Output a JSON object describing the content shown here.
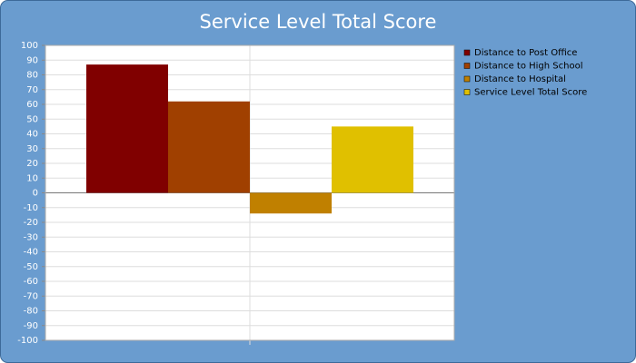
{
  "chart_data": {
    "type": "bar",
    "title": "Service Level Total Score",
    "categories": [
      null
    ],
    "series": [
      {
        "name": "Distance to Post Office",
        "color": "#800000",
        "values": [
          87
        ]
      },
      {
        "name": "Distance to High School",
        "color": "#a04000",
        "values": [
          62
        ]
      },
      {
        "name": "Distance to Hospital",
        "color": "#c08000",
        "values": [
          -14
        ]
      },
      {
        "name": "Service Level Total Score",
        "color": "#e0c000",
        "values": [
          45
        ]
      }
    ],
    "ylim": [
      -100,
      100
    ],
    "yticks": [
      -100,
      -90,
      -80,
      -70,
      -60,
      -50,
      -40,
      -30,
      -20,
      -10,
      0,
      10,
      20,
      30,
      40,
      50,
      60,
      70,
      80,
      90,
      100
    ],
    "grid": true,
    "legend": "right"
  }
}
